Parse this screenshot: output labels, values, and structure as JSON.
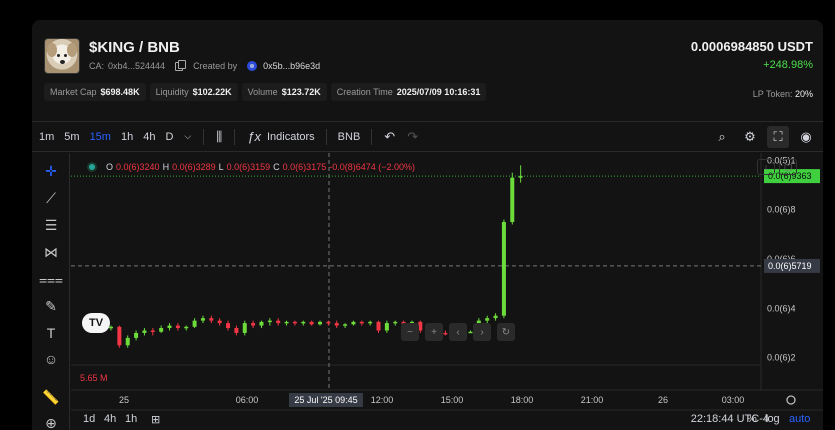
{
  "token": {
    "name": "$KING / BNB",
    "ca_label": "CA:",
    "ca": "0xb4...524444",
    "created_by_label": "Created by",
    "creator": "0x5b...b96e3d",
    "price": "0.0006984850 USDT",
    "change": "+248.98%"
  },
  "stats": [
    {
      "label": "Market Cap",
      "value": "$698.48K"
    },
    {
      "label": "Liquidity",
      "value": "$102.22K"
    },
    {
      "label": "Volume",
      "value": "$123.72K"
    },
    {
      "label": "Creation Time",
      "value": "2025/07/09 10:16:31"
    }
  ],
  "lp": {
    "label": "LP Token:",
    "value": "20%"
  },
  "toolbar": {
    "timeframes": [
      "1m",
      "5m",
      "15m",
      "1h",
      "4h",
      "D"
    ],
    "active_timeframe": "15m",
    "indicators_label": "Indicators",
    "symbol_label": "BNB"
  },
  "legend": {
    "o_label": "O",
    "o": "0.0(6)3240",
    "h_label": "H",
    "h": "0.0(6)3289",
    "l_label": "L",
    "l": "0.0(6)3159",
    "c_label": "C",
    "c": "0.0(6)3175",
    "change": "-0.0(8)6474 (−2.00%)"
  },
  "volume_label": "5.65 M",
  "price_axis": {
    "ticks": [
      "0.0(5)1",
      "0.0(6)8",
      "0.0(6)6",
      "0.0(6)4",
      "0.0(6)2"
    ],
    "tick_values": [
      10,
      8,
      6,
      4,
      2
    ],
    "current_label": "0.0(6)9363",
    "current_value": 9.363,
    "crosshair_label": "0.0(6)5719",
    "crosshair_value": 5.719
  },
  "time_axis": {
    "ticks": [
      "25",
      "06:00",
      "12:00",
      "15:00",
      "18:00",
      "21:00",
      "26",
      "03:00"
    ],
    "crosshair_label": "25 Jul '25   09:45"
  },
  "bottom": {
    "ranges": [
      "1d",
      "4h",
      "1h"
    ],
    "clock": "22:18:44 UTC-4",
    "percent": "%",
    "log": "log",
    "auto": "auto"
  },
  "chart_data": {
    "type": "candlestick",
    "candles": [
      {
        "o": 3.2,
        "h": 3.3,
        "l": 3.1,
        "c": 3.25
      },
      {
        "o": 3.25,
        "h": 3.3,
        "l": 2.4,
        "c": 2.5
      },
      {
        "o": 2.5,
        "h": 2.9,
        "l": 2.4,
        "c": 2.8
      },
      {
        "o": 2.8,
        "h": 3.1,
        "l": 2.7,
        "c": 3.0
      },
      {
        "o": 3.0,
        "h": 3.2,
        "l": 2.9,
        "c": 3.1
      },
      {
        "o": 3.1,
        "h": 3.2,
        "l": 2.9,
        "c": 3.05
      },
      {
        "o": 3.05,
        "h": 3.3,
        "l": 3.0,
        "c": 3.2
      },
      {
        "o": 3.2,
        "h": 3.4,
        "l": 3.1,
        "c": 3.3
      },
      {
        "o": 3.3,
        "h": 3.4,
        "l": 3.1,
        "c": 3.2
      },
      {
        "o": 3.2,
        "h": 3.3,
        "l": 3.1,
        "c": 3.25
      },
      {
        "o": 3.25,
        "h": 3.6,
        "l": 3.2,
        "c": 3.5
      },
      {
        "o": 3.5,
        "h": 3.7,
        "l": 3.4,
        "c": 3.6
      },
      {
        "o": 3.6,
        "h": 3.7,
        "l": 3.4,
        "c": 3.5
      },
      {
        "o": 3.5,
        "h": 3.6,
        "l": 3.3,
        "c": 3.4
      },
      {
        "o": 3.4,
        "h": 3.5,
        "l": 3.1,
        "c": 3.2
      },
      {
        "o": 3.2,
        "h": 3.3,
        "l": 2.9,
        "c": 3.0
      },
      {
        "o": 3.0,
        "h": 3.5,
        "l": 2.9,
        "c": 3.4
      },
      {
        "o": 3.4,
        "h": 3.5,
        "l": 3.2,
        "c": 3.3
      },
      {
        "o": 3.3,
        "h": 3.5,
        "l": 3.2,
        "c": 3.45
      },
      {
        "o": 3.45,
        "h": 3.6,
        "l": 3.3,
        "c": 3.5
      },
      {
        "o": 3.5,
        "h": 3.6,
        "l": 3.3,
        "c": 3.4
      },
      {
        "o": 3.4,
        "h": 3.5,
        "l": 3.3,
        "c": 3.45
      },
      {
        "o": 3.45,
        "h": 3.5,
        "l": 3.3,
        "c": 3.4
      },
      {
        "o": 3.4,
        "h": 3.5,
        "l": 3.3,
        "c": 3.45
      },
      {
        "o": 3.45,
        "h": 3.5,
        "l": 3.3,
        "c": 3.35
      },
      {
        "o": 3.35,
        "h": 3.5,
        "l": 3.3,
        "c": 3.45
      },
      {
        "o": 3.45,
        "h": 3.5,
        "l": 3.3,
        "c": 3.4
      },
      {
        "o": 3.4,
        "h": 3.5,
        "l": 3.2,
        "c": 3.3
      },
      {
        "o": 3.3,
        "h": 3.4,
        "l": 3.2,
        "c": 3.35
      },
      {
        "o": 3.35,
        "h": 3.5,
        "l": 3.3,
        "c": 3.45
      },
      {
        "o": 3.45,
        "h": 3.5,
        "l": 3.3,
        "c": 3.4
      },
      {
        "o": 3.4,
        "h": 3.5,
        "l": 3.3,
        "c": 3.45
      },
      {
        "o": 3.45,
        "h": 3.5,
        "l": 3.0,
        "c": 3.1
      },
      {
        "o": 3.1,
        "h": 3.5,
        "l": 3.0,
        "c": 3.4
      },
      {
        "o": 3.4,
        "h": 3.5,
        "l": 3.3,
        "c": 3.45
      },
      {
        "o": 3.45,
        "h": 3.5,
        "l": 3.2,
        "c": 3.3
      },
      {
        "o": 3.3,
        "h": 3.5,
        "l": 3.2,
        "c": 3.45
      },
      {
        "o": 3.45,
        "h": 3.5,
        "l": 3.0,
        "c": 3.1
      },
      {
        "o": 3.1,
        "h": 3.3,
        "l": 3.0,
        "c": 3.05
      },
      {
        "o": 3.05,
        "h": 3.2,
        "l": 2.9,
        "c": 3.0
      },
      {
        "o": 3.0,
        "h": 3.1,
        "l": 2.9,
        "c": 2.95
      },
      {
        "o": 2.95,
        "h": 3.1,
        "l": 2.9,
        "c": 3.0
      },
      {
        "o": 3.0,
        "h": 3.1,
        "l": 2.9,
        "c": 3.05
      },
      {
        "o": 3.05,
        "h": 3.1,
        "l": 3.0,
        "c": 3.05
      },
      {
        "o": 3.05,
        "h": 3.6,
        "l": 3.0,
        "c": 3.5
      },
      {
        "o": 3.5,
        "h": 3.7,
        "l": 3.4,
        "c": 3.6
      },
      {
        "o": 3.6,
        "h": 3.8,
        "l": 3.5,
        "c": 3.7
      },
      {
        "o": 3.7,
        "h": 7.6,
        "l": 3.6,
        "c": 7.5
      },
      {
        "o": 7.5,
        "h": 9.5,
        "l": 7.4,
        "c": 9.3
      },
      {
        "o": 9.3,
        "h": 9.8,
        "l": 9.1,
        "c": 9.36
      }
    ]
  },
  "colors": {
    "up": "#6ddc3b",
    "down": "#f23645",
    "accent": "#2962ff",
    "current_price": "#3fcf3f"
  }
}
